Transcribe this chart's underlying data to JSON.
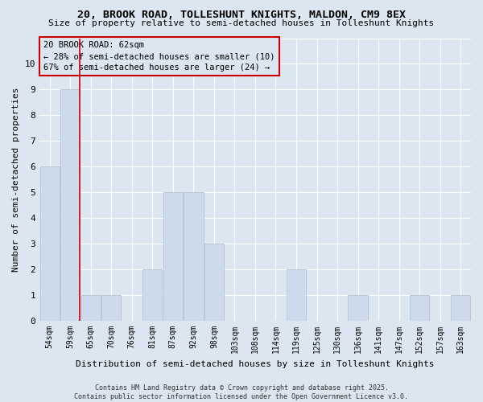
{
  "title1": "20, BROOK ROAD, TOLLESHUNT KNIGHTS, MALDON, CM9 8EX",
  "title2": "Size of property relative to semi-detached houses in Tolleshunt Knights",
  "xlabel": "Distribution of semi-detached houses by size in Tolleshunt Knights",
  "ylabel": "Number of semi-detached properties",
  "categories": [
    "54sqm",
    "59sqm",
    "65sqm",
    "70sqm",
    "76sqm",
    "81sqm",
    "87sqm",
    "92sqm",
    "98sqm",
    "103sqm",
    "108sqm",
    "114sqm",
    "119sqm",
    "125sqm",
    "130sqm",
    "136sqm",
    "141sqm",
    "147sqm",
    "152sqm",
    "157sqm",
    "163sqm"
  ],
  "values": [
    6,
    9,
    1,
    1,
    0,
    2,
    5,
    5,
    3,
    0,
    0,
    0,
    2,
    0,
    0,
    1,
    0,
    0,
    1,
    0,
    1
  ],
  "bar_color": "#cddaeb",
  "bar_edge_color": "#afc4d9",
  "vline_color": "#cc0000",
  "annotation_title": "20 BROOK ROAD: 62sqm",
  "annotation_line1": "← 28% of semi-detached houses are smaller (10)",
  "annotation_line2": "67% of semi-detached houses are larger (24) →",
  "ylim": [
    0,
    11
  ],
  "yticks": [
    0,
    1,
    2,
    3,
    4,
    5,
    6,
    7,
    8,
    9,
    10,
    11
  ],
  "background_color": "#dce6f0",
  "footer1": "Contains HM Land Registry data © Crown copyright and database right 2025.",
  "footer2": "Contains public sector information licensed under the Open Government Licence v3.0."
}
